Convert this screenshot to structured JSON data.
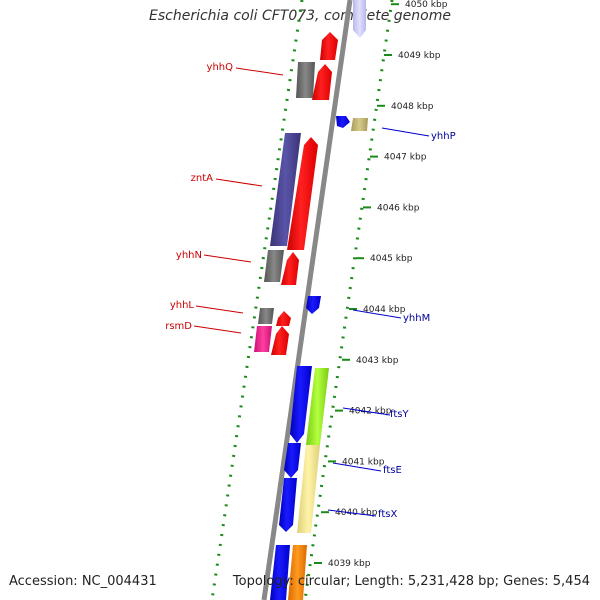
{
  "title": "Escherichia coli CFT073, complete genome",
  "footer": {
    "accession": "Accession: NC_004431",
    "summary": "Topology: circular; Length: 5,231,428 bp; Genes: 5,454"
  },
  "colors": {
    "forward_gene": "#ff0000",
    "reverse_gene": "#0000ff",
    "rna_gray": "#666666",
    "label_forward": "#cc0000",
    "label_reverse": "#000099",
    "dotted_guides": "#1a8a1a",
    "backbone": "#888888"
  },
  "scale": {
    "unit": "kbp",
    "ticks": [
      {
        "value": 4050,
        "label": "4050 kbp"
      },
      {
        "value": 4049,
        "label": "4049 kbp"
      },
      {
        "value": 4048,
        "label": "4048 kbp"
      },
      {
        "value": 4047,
        "label": "4047 kbp"
      },
      {
        "value": 4046,
        "label": "4046 kbp"
      },
      {
        "value": 4045,
        "label": "4045 kbp"
      },
      {
        "value": 4044,
        "label": "4044 kbp"
      },
      {
        "value": 4043,
        "label": "4043 kbp"
      },
      {
        "value": 4042,
        "label": "4042 kbp"
      },
      {
        "value": 4041,
        "label": "4041 kbp"
      },
      {
        "value": 4040,
        "label": "4040 kbp"
      },
      {
        "value": 4039,
        "label": "4039 kbp"
      }
    ]
  },
  "gene_labels": [
    {
      "name": "yhhQ",
      "strand": "forward"
    },
    {
      "name": "yhhP",
      "strand": "reverse"
    },
    {
      "name": "zntA",
      "strand": "forward"
    },
    {
      "name": "yhhN",
      "strand": "forward"
    },
    {
      "name": "yhhL",
      "strand": "forward"
    },
    {
      "name": "rsmD",
      "strand": "forward"
    },
    {
      "name": "yhhM",
      "strand": "reverse"
    },
    {
      "name": "ftsY",
      "strand": "reverse"
    },
    {
      "name": "ftsE",
      "strand": "reverse"
    },
    {
      "name": "ftsX",
      "strand": "reverse"
    }
  ]
}
